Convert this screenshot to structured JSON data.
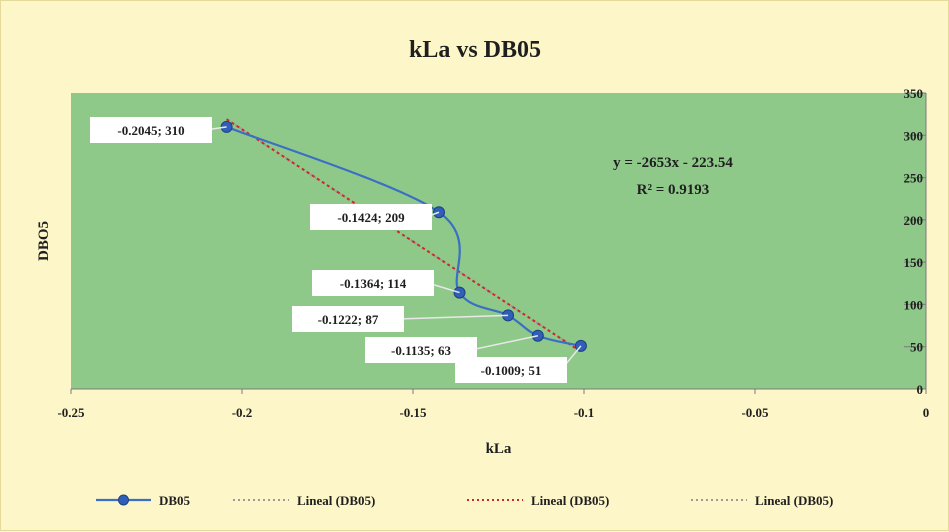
{
  "chart_data": {
    "type": "scatter",
    "title": "kLa vs DB05",
    "xlabel": "kLa",
    "ylabel": "DBO5",
    "xlim": [
      -0.25,
      0
    ],
    "ylim": [
      0,
      350
    ],
    "x_ticks": [
      "-0.25",
      "-0.2",
      "-0.15",
      "-0.1",
      "-0.05",
      "0"
    ],
    "y_ticks": [
      "0",
      "50",
      "100",
      "150",
      "200",
      "250",
      "300",
      "350"
    ],
    "grid": false,
    "legend_position": "bottom",
    "series": [
      {
        "name": "DB05",
        "style": "smooth-line-with-markers",
        "color": "#3b6fc4",
        "x": [
          -0.2045,
          -0.1424,
          -0.1364,
          -0.1222,
          -0.1135,
          -0.1009
        ],
        "y": [
          310,
          209,
          114,
          87,
          63,
          51
        ],
        "labels": [
          "-0.2045; 310",
          "-0.1424; 209",
          "-0.1364; 114",
          "-0.1222; 87",
          "-0.1135; 63",
          "-0.1009; 51"
        ]
      }
    ],
    "trendline": {
      "equation": "y = -2653x - 223.54",
      "r_squared": "R² = 0.9193",
      "slope": -2653,
      "intercept": -223.54
    },
    "legend": [
      {
        "label": "DB05",
        "style": "line-marker",
        "color": "#3b6fc4"
      },
      {
        "label": "Lineal (DB05)",
        "style": "dotted",
        "color": "#9a9a9a"
      },
      {
        "label": "Lineal (DB05)",
        "style": "dotted",
        "color": "#cc2a2a"
      },
      {
        "label": "Lineal (DB05)",
        "style": "dotted",
        "color": "#9a9a9a"
      }
    ],
    "colors": {
      "plot_background": "#8fc98a",
      "chart_background": "#fdf6c8",
      "series": "#3b6fc4",
      "trend_red": "#cc2a2a",
      "trend_gray": "#9a9a9a"
    }
  }
}
